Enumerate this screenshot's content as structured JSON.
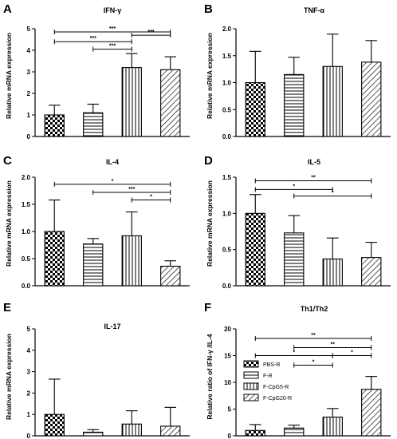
{
  "figure": {
    "panels": [
      {
        "letter": "A",
        "title": "IFN-γ",
        "ylabel": "Relative mRNA expression"
      },
      {
        "letter": "B",
        "title": "TNF-α",
        "ylabel": "Relative mRNA expression"
      },
      {
        "letter": "C",
        "title": "IL-4",
        "ylabel": "Relative mRNA expression"
      },
      {
        "letter": "D",
        "title": "IL-5",
        "ylabel": "Relative mRNA expression"
      },
      {
        "letter": "E",
        "title": "IL-17",
        "ylabel": "Relative mRNA expression"
      },
      {
        "letter": "F",
        "title": "Th1/Th2",
        "ylabel": "Relative ratio of IFN-γ /IL-4"
      }
    ]
  },
  "colors": {
    "bar_fill": "#ffffff",
    "bar_stroke": "#000000",
    "pattern": "#000000"
  },
  "chart_data": [
    {
      "type": "bar",
      "title": "IFN-γ",
      "ylabel": "Relative mRNA expression",
      "categories": [
        "PBS-R",
        "F-R",
        "F-CpG5-R",
        "F-CpG20-R"
      ],
      "values": [
        1.0,
        1.1,
        3.2,
        3.1
      ],
      "errors": [
        0.45,
        0.4,
        0.65,
        0.6
      ],
      "ylim": [
        0,
        5
      ],
      "yticks": [
        "0",
        "1",
        "2",
        "3",
        "4",
        "5"
      ],
      "significance": [
        {
          "from": 0,
          "to": 3,
          "label": "***",
          "y": 4.85
        },
        {
          "from": 2,
          "to": 3,
          "label": "***",
          "y": 4.7
        },
        {
          "from": 0,
          "to": 2,
          "label": "***",
          "y": 4.4
        },
        {
          "from": 1,
          "to": 2,
          "label": "***",
          "y": 4.05
        }
      ]
    },
    {
      "type": "bar",
      "title": "TNF-α",
      "ylabel": "Relative mRNA expression",
      "categories": [
        "PBS-R",
        "F-R",
        "F-CpG5-R",
        "F-CpG20-R"
      ],
      "values": [
        1.0,
        1.15,
        1.3,
        1.38
      ],
      "errors": [
        0.58,
        0.32,
        0.6,
        0.4
      ],
      "ylim": [
        0,
        2.0
      ],
      "yticks": [
        "0.0",
        "0.5",
        "1.0",
        "1.5",
        "2.0"
      ],
      "significance": []
    },
    {
      "type": "bar",
      "title": "IL-4",
      "ylabel": "Relative mRNA expression",
      "categories": [
        "PBS-R",
        "F-R",
        "F-CpG5-R",
        "F-CpG20-R"
      ],
      "values": [
        1.0,
        0.77,
        0.92,
        0.36
      ],
      "errors": [
        0.58,
        0.1,
        0.44,
        0.1
      ],
      "ylim": [
        0,
        2.0
      ],
      "yticks": [
        "0.0",
        "0.5",
        "1.0",
        "1.5",
        "2.0"
      ],
      "significance": [
        {
          "from": 0,
          "to": 3,
          "label": "*",
          "y": 1.87
        },
        {
          "from": 1,
          "to": 3,
          "label": "***",
          "y": 1.72
        },
        {
          "from": 2,
          "to": 3,
          "label": "*",
          "y": 1.58
        }
      ]
    },
    {
      "type": "bar",
      "title": "IL-5",
      "ylabel": "Relative mRNA expression",
      "categories": [
        "PBS-R",
        "F-R",
        "F-CpG5-R",
        "F-CpG20-R"
      ],
      "values": [
        1.0,
        0.73,
        0.37,
        0.39
      ],
      "errors": [
        0.26,
        0.24,
        0.29,
        0.21
      ],
      "ylim": [
        0,
        1.5
      ],
      "yticks": [
        "0.0",
        "0.5",
        "1.0",
        "1.5"
      ],
      "significance": [
        {
          "from": 0,
          "to": 3,
          "label": "**",
          "y": 1.45
        },
        {
          "from": 0,
          "to": 2,
          "label": "*",
          "y": 1.33
        },
        {
          "from": 1,
          "to": 3,
          "label": "*",
          "y": 1.24
        }
      ]
    },
    {
      "type": "bar",
      "title": "IL-17",
      "ylabel": "Relative mRNA expression",
      "categories": [
        "PBS-R",
        "F-R",
        "F-CpG5-R",
        "F-CpG20-R"
      ],
      "values": [
        1.0,
        0.17,
        0.55,
        0.45
      ],
      "errors": [
        1.65,
        0.12,
        0.62,
        0.88
      ],
      "ylim": [
        0,
        5
      ],
      "yticks": [
        "0",
        "1",
        "2",
        "3",
        "4",
        "5"
      ],
      "significance": []
    },
    {
      "type": "bar",
      "title": "Th1/Th2",
      "ylabel": "Relative ratio of IFN-γ /IL-4",
      "categories": [
        "PBS-R",
        "F-R",
        "F-CpG5-R",
        "F-CpG20-R"
      ],
      "values": [
        1.0,
        1.45,
        3.5,
        8.7
      ],
      "errors": [
        1.1,
        0.55,
        1.6,
        2.4
      ],
      "ylim": [
        0,
        20
      ],
      "yticks": [
        "0",
        "5",
        "10",
        "15",
        "20"
      ],
      "legend": [
        "PBS-R",
        "F-R",
        "F-CpG5-R",
        "F-CpG20-R"
      ],
      "significance": [
        {
          "from": 0,
          "to": 3,
          "label": "**",
          "y": 18.2
        },
        {
          "from": 1,
          "to": 3,
          "label": "**",
          "y": 16.5
        },
        {
          "from": 0,
          "to": 2,
          "label": "*",
          "y": 15.0
        },
        {
          "from": 2,
          "to": 3,
          "label": "*",
          "y": 15.0
        },
        {
          "from": 1,
          "to": 2,
          "label": "*",
          "y": 13.2
        }
      ]
    }
  ]
}
